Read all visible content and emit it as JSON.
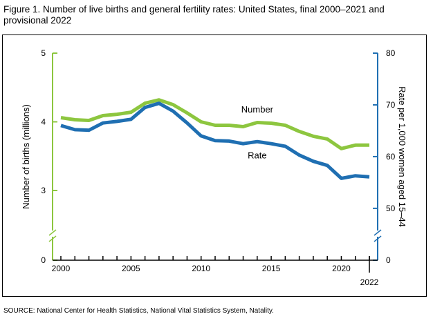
{
  "figure": {
    "title": "Figure 1. Number of live births and general fertility rates: United States, final 2000–2021 and provisional 2022",
    "source": "SOURCE: National Center for Health Statistics, National Vital Statistics System, Natality."
  },
  "colors": {
    "number": "#8dc63f",
    "rate": "#1f6fb2",
    "axis_left": "#8dc63f",
    "axis_right": "#1f6fb2"
  },
  "chart_data": {
    "type": "line",
    "x": [
      2000,
      2001,
      2002,
      2003,
      2004,
      2005,
      2006,
      2007,
      2008,
      2009,
      2010,
      2011,
      2012,
      2013,
      2014,
      2015,
      2016,
      2017,
      2018,
      2019,
      2020,
      2021,
      2022
    ],
    "series": [
      {
        "name": "Number",
        "axis": "left",
        "color": "#8dc63f",
        "values": [
          4.06,
          4.03,
          4.02,
          4.09,
          4.11,
          4.14,
          4.27,
          4.32,
          4.25,
          4.13,
          4.0,
          3.95,
          3.95,
          3.93,
          3.99,
          3.98,
          3.95,
          3.86,
          3.79,
          3.75,
          3.61,
          3.66,
          3.66
        ]
      },
      {
        "name": "Rate",
        "axis": "right",
        "color": "#1f6fb2",
        "values": [
          66.0,
          65.2,
          65.1,
          66.5,
          66.8,
          67.2,
          69.5,
          70.3,
          68.8,
          66.5,
          64.0,
          63.1,
          63.0,
          62.5,
          62.9,
          62.5,
          62.0,
          60.3,
          59.1,
          58.3,
          55.8,
          56.3,
          56.1
        ]
      }
    ],
    "left_axis": {
      "label": "Number of births (millions)",
      "ticks": [
        "0",
        "3",
        "4",
        "5"
      ],
      "range": [
        2.99,
        5.0
      ],
      "break": true
    },
    "right_axis": {
      "label": "Rate per 1,000 women aged 15–44",
      "ticks": [
        "0",
        "50",
        "60",
        "70",
        "80"
      ],
      "range": [
        49.85,
        80.0
      ],
      "break": true
    },
    "x_axis": {
      "ticks": [
        "2000",
        "2005",
        "2010",
        "2015",
        "2020"
      ],
      "extra_label": "2022",
      "range": [
        2000,
        2022
      ]
    },
    "series_labels": [
      "Number",
      "Rate"
    ],
    "grid": false
  }
}
